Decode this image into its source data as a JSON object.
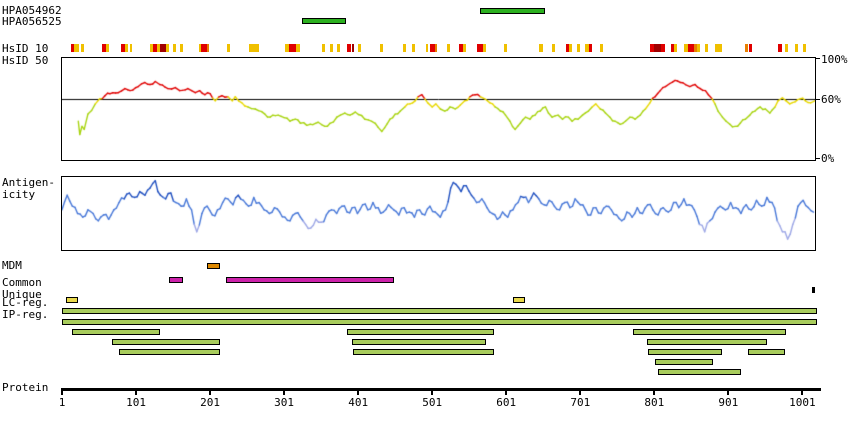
{
  "left_labels": {
    "hsid10": "HsID 10",
    "hsid50": "HsID 50",
    "antigenicity1": "Antigen-",
    "antigenicity2": "icity",
    "mdm": "MDM",
    "common": "Common",
    "unique": "Unique",
    "lc": "LC-reg.",
    "ip": "IP-reg.",
    "protein": "Protein"
  },
  "right_axis_labels": {
    "top": "100%",
    "mid": "60%",
    "bottom": "0%"
  },
  "colors": {
    "antigen_bar": "#2cb020",
    "hsid10": {
      "y": "#f0c000",
      "r": "#e00000",
      "d": "#a00000",
      "o": "#e88000"
    },
    "hsid50": {
      "high": "#e00000",
      "mid": "#e8d800",
      "low": "#a8d410"
    },
    "antigenicity": {
      "high": "#2050c0",
      "mid": "#4878d8",
      "low": "#9ea8e6"
    },
    "mdm": "#dd8800",
    "common": "#cc22aa",
    "unique": "#000000",
    "lc": "#e8d84a",
    "ip": "#a8cc5c"
  },
  "tracks": {
    "hpa_antigens": [
      {
        "id": "HPA054962",
        "start": 566,
        "end": 651
      },
      {
        "id": "HPA056525",
        "start": 325,
        "end": 382
      }
    ],
    "hsid10_segments": [
      [
        13,
        17,
        "r"
      ],
      [
        17,
        24,
        "y"
      ],
      [
        27,
        31,
        "y"
      ],
      [
        55,
        60,
        "r"
      ],
      [
        60,
        64,
        "y"
      ],
      [
        81,
        86,
        "r"
      ],
      [
        86,
        90,
        "y"
      ],
      [
        93,
        96,
        "y"
      ],
      [
        120,
        124,
        "y"
      ],
      [
        124,
        129,
        "r"
      ],
      [
        129,
        133,
        "y"
      ],
      [
        133,
        141,
        "d"
      ],
      [
        141,
        146,
        "y"
      ],
      [
        151,
        155,
        "y"
      ],
      [
        160,
        164,
        "y"
      ],
      [
        186,
        189,
        "y"
      ],
      [
        189,
        197,
        "r"
      ],
      [
        197,
        200,
        "o"
      ],
      [
        224,
        228,
        "y"
      ],
      [
        254,
        267,
        "y"
      ],
      [
        302,
        308,
        "y"
      ],
      [
        308,
        317,
        "r"
      ],
      [
        317,
        323,
        "y"
      ],
      [
        352,
        356,
        "y"
      ],
      [
        363,
        367,
        "y"
      ],
      [
        373,
        377,
        "y"
      ],
      [
        386,
        392,
        "r"
      ],
      [
        392,
        396,
        "d"
      ],
      [
        401,
        405,
        "y"
      ],
      [
        431,
        435,
        "y"
      ],
      [
        462,
        466,
        "y"
      ],
      [
        474,
        478,
        "y"
      ],
      [
        492,
        496,
        "y"
      ],
      [
        498,
        505,
        "r"
      ],
      [
        505,
        508,
        "o"
      ],
      [
        521,
        525,
        "y"
      ],
      [
        537,
        543,
        "r"
      ],
      [
        543,
        546,
        "y"
      ],
      [
        562,
        569,
        "r"
      ],
      [
        569,
        574,
        "y"
      ],
      [
        598,
        602,
        "y"
      ],
      [
        645,
        650,
        "y"
      ],
      [
        663,
        667,
        "y"
      ],
      [
        682,
        686,
        "r"
      ],
      [
        686,
        690,
        "y"
      ],
      [
        697,
        701,
        "y"
      ],
      [
        708,
        713,
        "y"
      ],
      [
        713,
        717,
        "r"
      ],
      [
        728,
        732,
        "y"
      ],
      [
        795,
        801,
        "r"
      ],
      [
        801,
        810,
        "d"
      ],
      [
        810,
        816,
        "r"
      ],
      [
        823,
        828,
        "r"
      ],
      [
        828,
        831,
        "y"
      ],
      [
        841,
        846,
        "y"
      ],
      [
        847,
        855,
        "r"
      ],
      [
        855,
        859,
        "o"
      ],
      [
        859,
        863,
        "y"
      ],
      [
        869,
        873,
        "y"
      ],
      [
        883,
        893,
        "y"
      ],
      [
        924,
        928,
        "o"
      ],
      [
        929,
        933,
        "r"
      ],
      [
        968,
        973,
        "r"
      ],
      [
        978,
        982,
        "y"
      ],
      [
        991,
        995,
        "y"
      ],
      [
        1002,
        1006,
        "y"
      ]
    ],
    "mdm": [
      [
        197,
        212
      ]
    ],
    "common": [
      [
        146,
        162
      ],
      [
        223,
        447
      ]
    ],
    "unique": [
      [
        1014,
        1018
      ]
    ],
    "lc": [
      [
        6,
        20
      ],
      [
        610,
        624
      ]
    ],
    "ip_rows": [
      [
        [
          1,
          1018
        ]
      ],
      [
        [
          1,
          1018
        ]
      ],
      [
        [
          14,
          131
        ],
        [
          386,
          582
        ],
        [
          772,
          976
        ]
      ],
      [
        [
          69,
          212
        ],
        [
          393,
          571
        ],
        [
          791,
          950
        ]
      ],
      [
        [
          78,
          212
        ],
        [
          394,
          582
        ],
        [
          792,
          890
        ],
        [
          928,
          975
        ]
      ],
      [
        [
          802,
          877
        ]
      ],
      [
        [
          806,
          916
        ]
      ]
    ]
  },
  "chart_data": [
    {
      "id": "hsid50",
      "type": "line",
      "title": "HsID 50",
      "x_axis": "protein position",
      "y_range": [
        0,
        100
      ],
      "y_tick_labels": [
        "100%",
        "60%",
        "0%"
      ],
      "threshold_line": 60,
      "points": [
        [
          23,
          38
        ],
        [
          25,
          25
        ],
        [
          28,
          33
        ],
        [
          31,
          30
        ],
        [
          36,
          45
        ],
        [
          46,
          55
        ],
        [
          52,
          60
        ],
        [
          59,
          63
        ],
        [
          66,
          65
        ],
        [
          77,
          66
        ],
        [
          86,
          70
        ],
        [
          93,
          68
        ],
        [
          104,
          72
        ],
        [
          113,
          76
        ],
        [
          120,
          74
        ],
        [
          127,
          77
        ],
        [
          133,
          74
        ],
        [
          144,
          70
        ],
        [
          154,
          71
        ],
        [
          160,
          68
        ],
        [
          171,
          70
        ],
        [
          181,
          66
        ],
        [
          187,
          68
        ],
        [
          194,
          64
        ],
        [
          201,
          65
        ],
        [
          208,
          58
        ],
        [
          217,
          63
        ],
        [
          225,
          62
        ],
        [
          231,
          58
        ],
        [
          235,
          62
        ],
        [
          244,
          56
        ],
        [
          252,
          52
        ],
        [
          262,
          50
        ],
        [
          275,
          45
        ],
        [
          282,
          42
        ],
        [
          293,
          44
        ],
        [
          309,
          38
        ],
        [
          316,
          40
        ],
        [
          323,
          36
        ],
        [
          336,
          35
        ],
        [
          347,
          37
        ],
        [
          356,
          33
        ],
        [
          363,
          36
        ],
        [
          377,
          44
        ],
        [
          383,
          46
        ],
        [
          390,
          44
        ],
        [
          397,
          47
        ],
        [
          410,
          40
        ],
        [
          424,
          36
        ],
        [
          428,
          32
        ],
        [
          433,
          28
        ],
        [
          444,
          40
        ],
        [
          451,
          45
        ],
        [
          458,
          48
        ],
        [
          464,
          52
        ],
        [
          471,
          55
        ],
        [
          478,
          58
        ],
        [
          482,
          62
        ],
        [
          487,
          64
        ],
        [
          491,
          60
        ],
        [
          495,
          56
        ],
        [
          501,
          52
        ],
        [
          506,
          55
        ],
        [
          512,
          50
        ],
        [
          518,
          48
        ],
        [
          525,
          52
        ],
        [
          532,
          50
        ],
        [
          539,
          54
        ],
        [
          545,
          58
        ],
        [
          552,
          62
        ],
        [
          559,
          64
        ],
        [
          566,
          62
        ],
        [
          572,
          60
        ],
        [
          579,
          56
        ],
        [
          586,
          52
        ],
        [
          593,
          48
        ],
        [
          600,
          44
        ],
        [
          606,
          38
        ],
        [
          613,
          30
        ],
        [
          620,
          36
        ],
        [
          627,
          42
        ],
        [
          633,
          40
        ],
        [
          640,
          44
        ],
        [
          647,
          48
        ],
        [
          654,
          52
        ],
        [
          658,
          46
        ],
        [
          663,
          42
        ],
        [
          671,
          44
        ],
        [
          677,
          40
        ],
        [
          685,
          42
        ],
        [
          690,
          38
        ],
        [
          698,
          40
        ],
        [
          704,
          44
        ],
        [
          712,
          48
        ],
        [
          717,
          52
        ],
        [
          722,
          55
        ],
        [
          728,
          50
        ],
        [
          735,
          46
        ],
        [
          741,
          42
        ],
        [
          748,
          38
        ],
        [
          755,
          35
        ],
        [
          762,
          38
        ],
        [
          768,
          42
        ],
        [
          775,
          40
        ],
        [
          782,
          44
        ],
        [
          789,
          50
        ],
        [
          795,
          56
        ],
        [
          802,
          62
        ],
        [
          809,
          68
        ],
        [
          816,
          72
        ],
        [
          822,
          75
        ],
        [
          829,
          78
        ],
        [
          836,
          76
        ],
        [
          843,
          74
        ],
        [
          849,
          72
        ],
        [
          856,
          74
        ],
        [
          863,
          70
        ],
        [
          870,
          68
        ],
        [
          874,
          64
        ],
        [
          879,
          60
        ],
        [
          883,
          55
        ],
        [
          887,
          48
        ],
        [
          893,
          42
        ],
        [
          898,
          38
        ],
        [
          903,
          35
        ],
        [
          910,
          33
        ],
        [
          917,
          36
        ],
        [
          924,
          40
        ],
        [
          930,
          44
        ],
        [
          937,
          48
        ],
        [
          944,
          52
        ],
        [
          951,
          50
        ],
        [
          957,
          46
        ],
        [
          964,
          52
        ],
        [
          968,
          58
        ],
        [
          974,
          61
        ],
        [
          979,
          58
        ],
        [
          984,
          55
        ],
        [
          991,
          57
        ],
        [
          998,
          60
        ],
        [
          1005,
          58
        ],
        [
          1012,
          56
        ],
        [
          1018,
          58
        ]
      ]
    },
    {
      "id": "antigenicity",
      "type": "line",
      "title": "Antigenicity",
      "x_axis": "protein position",
      "y_range": [
        0,
        100
      ],
      "x_start": 1,
      "x_step": 7,
      "values": [
        55,
        75,
        60,
        50,
        45,
        55,
        50,
        40,
        48,
        42,
        55,
        65,
        70,
        78,
        72,
        80,
        75,
        85,
        95,
        75,
        70,
        78,
        65,
        60,
        70,
        55,
        25,
        50,
        60,
        48,
        55,
        65,
        70,
        62,
        75,
        68,
        60,
        72,
        65,
        55,
        50,
        58,
        52,
        45,
        40,
        50,
        45,
        35,
        30,
        42,
        38,
        48,
        55,
        50,
        60,
        52,
        58,
        50,
        62,
        55,
        65,
        58,
        52,
        62,
        55,
        48,
        58,
        52,
        45,
        55,
        48,
        60,
        52,
        45,
        55,
        85,
        90,
        80,
        88,
        75,
        65,
        70,
        58,
        50,
        42,
        52,
        45,
        55,
        65,
        72,
        65,
        78,
        70,
        62,
        68,
        60,
        55,
        65,
        58,
        70,
        62,
        55,
        48,
        58,
        50,
        60,
        55,
        48,
        40,
        52,
        45,
        58,
        50,
        62,
        55,
        48,
        58,
        52,
        65,
        58,
        70,
        62,
        55,
        35,
        25,
        40,
        52,
        60,
        55,
        65,
        58,
        50,
        62,
        55,
        68,
        60,
        72,
        65,
        40,
        25,
        15,
        35,
        60,
        68,
        58,
        52
      ]
    }
  ],
  "protein_axis": {
    "ticks": [
      1,
      101,
      201,
      301,
      401,
      501,
      601,
      701,
      801,
      901,
      1001
    ],
    "length": 1018
  }
}
